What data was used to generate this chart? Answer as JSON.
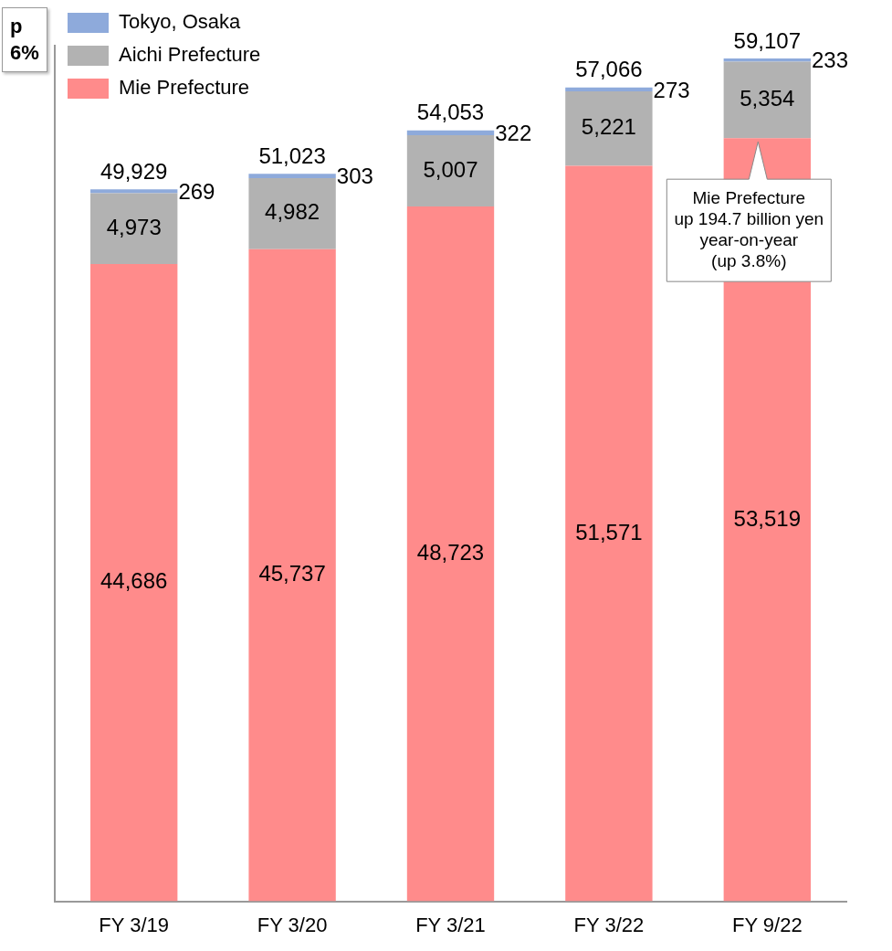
{
  "chart_data": {
    "type": "bar",
    "stacked": true,
    "categories": [
      "FY 3/19",
      "FY 3/20",
      "FY 3/21",
      "FY 3/22",
      "FY 9/22"
    ],
    "series": [
      {
        "name": "Mie Prefecture",
        "color": "#ff8b8b",
        "values": [
          44686,
          45737,
          48723,
          51571,
          53519
        ],
        "value_labels": [
          "44,686",
          "45,737",
          "48,723",
          "51,571",
          "53,519"
        ]
      },
      {
        "name": "Aichi Prefecture",
        "color": "#b2b2b2",
        "values": [
          4973,
          4982,
          5007,
          5221,
          5354
        ],
        "value_labels": [
          "4,973",
          "4,982",
          "5,007",
          "5,221",
          "5,354"
        ]
      },
      {
        "name": "Tokyo, Osaka",
        "color": "#8eaadb",
        "values": [
          269,
          303,
          322,
          273,
          233
        ],
        "value_labels": [
          "269",
          "303",
          "322",
          "273",
          "233"
        ]
      }
    ],
    "totals": [
      "49,929",
      "51,023",
      "54,053",
      "57,066",
      "59,107"
    ],
    "legend": "top left",
    "tick_labels": "x",
    "grid": false,
    "annotations": [
      "p\n6%",
      {
        "text": "Mie Prefecture\nup 194.7 billion yen\nyear-on-year\n(up 3.8%)",
        "x": "FY 9/22",
        "y": 53519
      }
    ]
  }
}
